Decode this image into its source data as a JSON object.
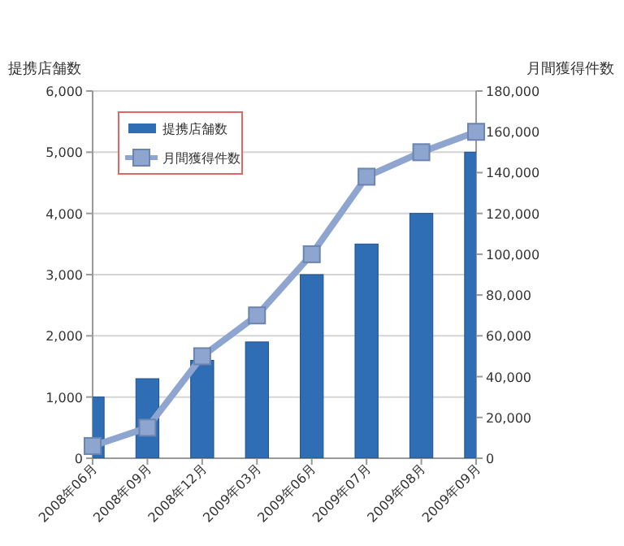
{
  "chart_data": {
    "type": "bar",
    "ylabel": "提携店舗数",
    "y2label": "月間獲得件数",
    "categories": [
      "2008年06月",
      "2008年09月",
      "2008年12月",
      "2009年03月",
      "2009年06月",
      "2009年07月",
      "2009年08月",
      "2009年09月"
    ],
    "series": [
      {
        "name": "提携店舗数",
        "color": "#2f6db5",
        "values": [
          1000,
          1300,
          1600,
          1900,
          3000,
          3500,
          4000,
          5000
        ]
      },
      {
        "name": "月間獲得件数",
        "type": "line",
        "axis": "y2",
        "color": "#8ea5cf",
        "marker": "square",
        "values": [
          6000,
          15000,
          50000,
          70000,
          100000,
          138000,
          150000,
          160000
        ]
      }
    ],
    "ylim": [
      0,
      6000
    ],
    "yticks": [
      {
        "value": 0,
        "label": "0"
      },
      {
        "value": 1000,
        "label": "1,000"
      },
      {
        "value": 2000,
        "label": "2,000"
      },
      {
        "value": 3000,
        "label": "3,000"
      },
      {
        "value": 4000,
        "label": "4,000"
      },
      {
        "value": 5000,
        "label": "5,000"
      },
      {
        "value": 6000,
        "label": "6,000"
      }
    ],
    "y2lim": [
      0,
      180000
    ],
    "y2ticks": [
      {
        "value": 0,
        "label": "0"
      },
      {
        "value": 20000,
        "label": "20,000"
      },
      {
        "value": 40000,
        "label": "40,000"
      },
      {
        "value": 60000,
        "label": "60,000"
      },
      {
        "value": 80000,
        "label": "80,000"
      },
      {
        "value": 100000,
        "label": "100,000"
      },
      {
        "value": 120000,
        "label": "120,000"
      },
      {
        "value": 140000,
        "label": "140,000"
      },
      {
        "value": 160000,
        "label": "160,000"
      },
      {
        "value": 180000,
        "label": "180,000"
      }
    ],
    "grid": "y",
    "legend": "top left"
  }
}
